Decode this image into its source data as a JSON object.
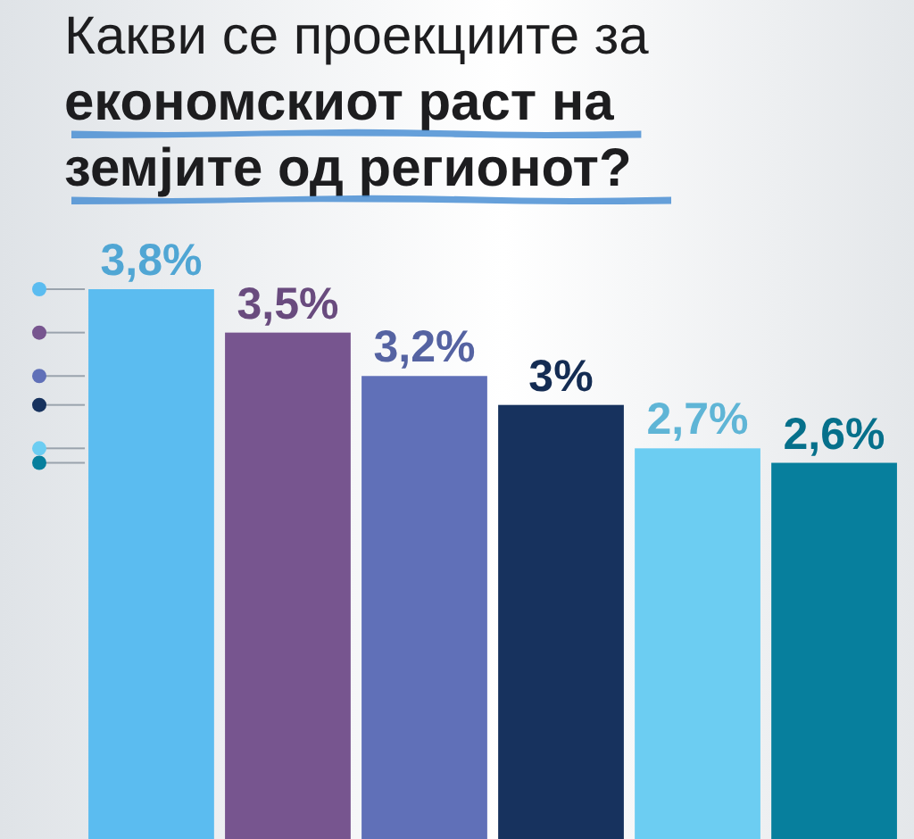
{
  "chart_data": {
    "type": "bar",
    "title": "Какви се проекциите за\nекономскиот раст на\nземјите од регионот?",
    "categories": [
      null,
      null,
      null,
      null,
      null,
      null
    ],
    "values": [
      3.8,
      3.5,
      3.2,
      3,
      2.7,
      2.6
    ],
    "colors": [
      "#5bbcf0",
      "#77558f",
      "#6070b8",
      "#17325e",
      "#6ccdf2",
      "#077f9d"
    ],
    "value_labels": [
      "3,8%",
      "3,5%",
      "3,2%",
      "3%",
      "2,7%",
      "2,6%"
    ]
  }
}
